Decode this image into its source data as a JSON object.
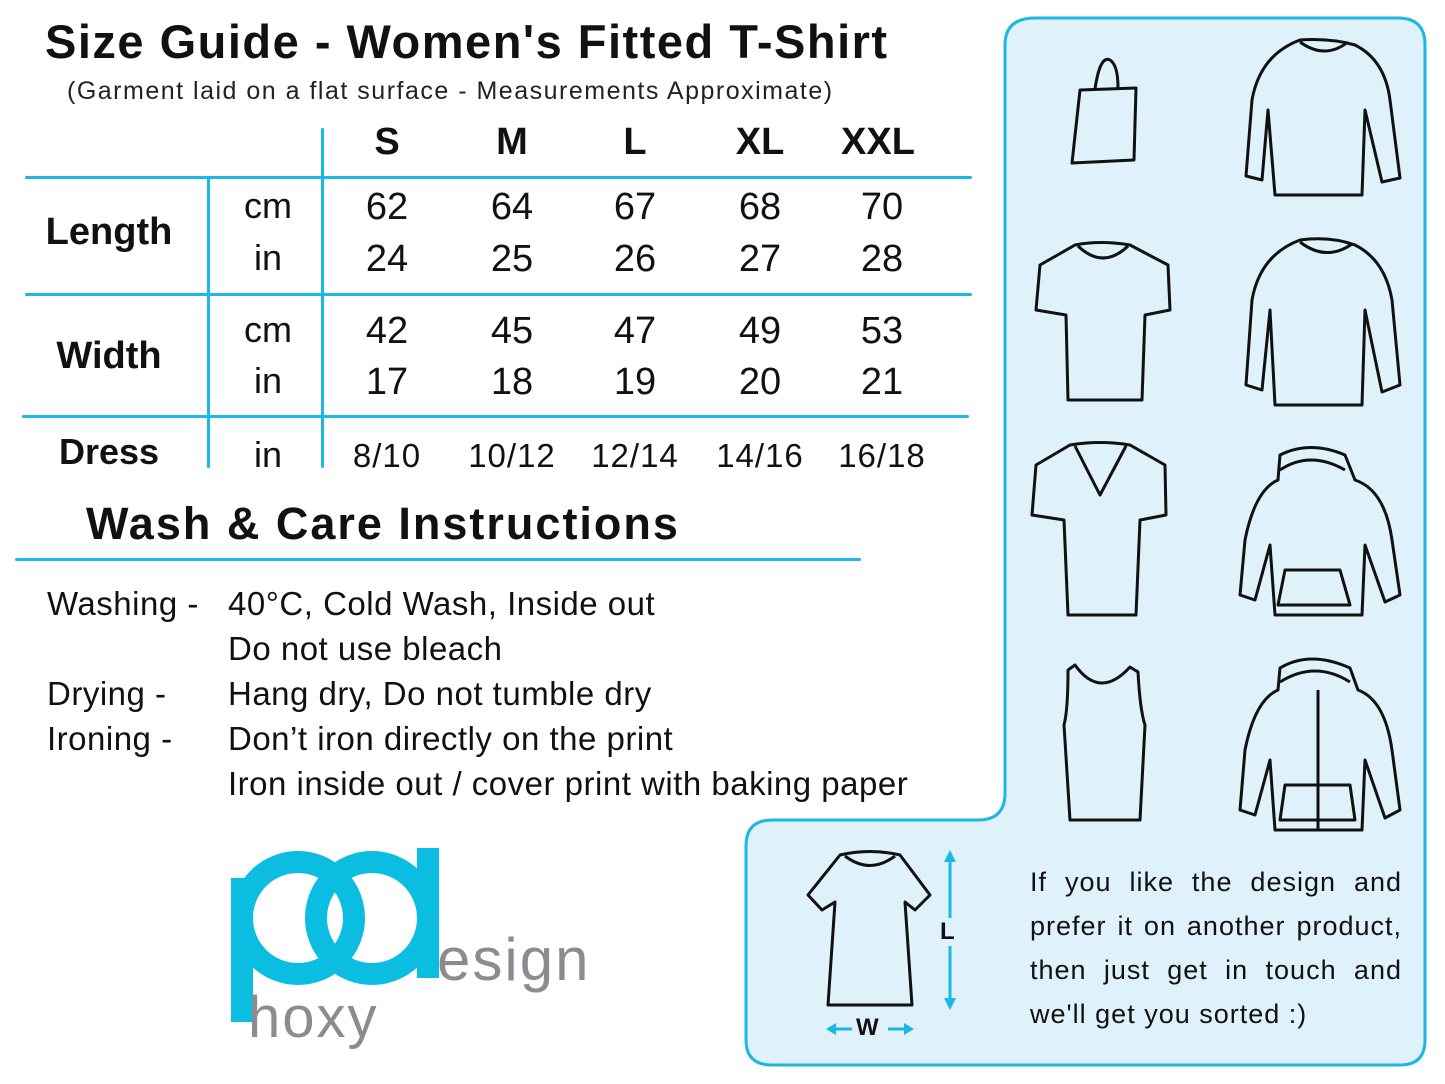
{
  "title": "Size Guide - Women's Fitted T-Shirt",
  "subtitle": "(Garment laid on a flat surface - Measurements Approximate)",
  "size_table": {
    "sizes": [
      "S",
      "M",
      "L",
      "XL",
      "XXL"
    ],
    "rows": [
      {
        "label": "Length",
        "units": [
          {
            "unit": "cm",
            "values": [
              "62",
              "64",
              "67",
              "68",
              "70"
            ]
          },
          {
            "unit": "in",
            "values": [
              "24",
              "25",
              "26",
              "27",
              "28"
            ]
          }
        ]
      },
      {
        "label": "Width",
        "units": [
          {
            "unit": "cm",
            "values": [
              "42",
              "45",
              "47",
              "49",
              "53"
            ]
          },
          {
            "unit": "in",
            "values": [
              "17",
              "18",
              "19",
              "20",
              "21"
            ]
          }
        ]
      },
      {
        "label": "Dress",
        "units": [
          {
            "unit": "in",
            "values": [
              "8/10",
              "10/12",
              "12/14",
              "14/16",
              "16/18"
            ]
          }
        ]
      }
    ]
  },
  "wash_care": {
    "title": "Wash & Care Instructions",
    "items": [
      {
        "label": "Washing -",
        "lines": [
          "40°C, Cold Wash, Inside out",
          "Do not use bleach"
        ]
      },
      {
        "label": "Drying -",
        "lines": [
          "Hang dry, Do not tumble dry"
        ]
      },
      {
        "label": "Ironing -",
        "lines": [
          "Don’t iron directly on the print",
          "Iron inside out / cover print with baking paper"
        ]
      }
    ]
  },
  "logo": {
    "mark": "pd",
    "word1": "esign",
    "word2": "hoxy"
  },
  "diagram": {
    "length_label": "L",
    "width_label": "W"
  },
  "cta_lines": [
    "If you like the design and",
    "prefer it on another product,",
    "then just get in touch and",
    "we'll get you sorted :)"
  ],
  "product_icons": [
    "tote-bag-icon",
    "long-sleeve-tshirt-icon",
    "tshirt-icon",
    "sweatshirt-icon",
    "vneck-tshirt-icon",
    "hoodie-icon",
    "tank-top-icon",
    "zip-hoodie-icon"
  ],
  "colors": {
    "accent": "#1ab8e3",
    "panel": "#dff1fb",
    "logo_blue": "#0bbde0",
    "logo_grey": "#8a8c90"
  }
}
